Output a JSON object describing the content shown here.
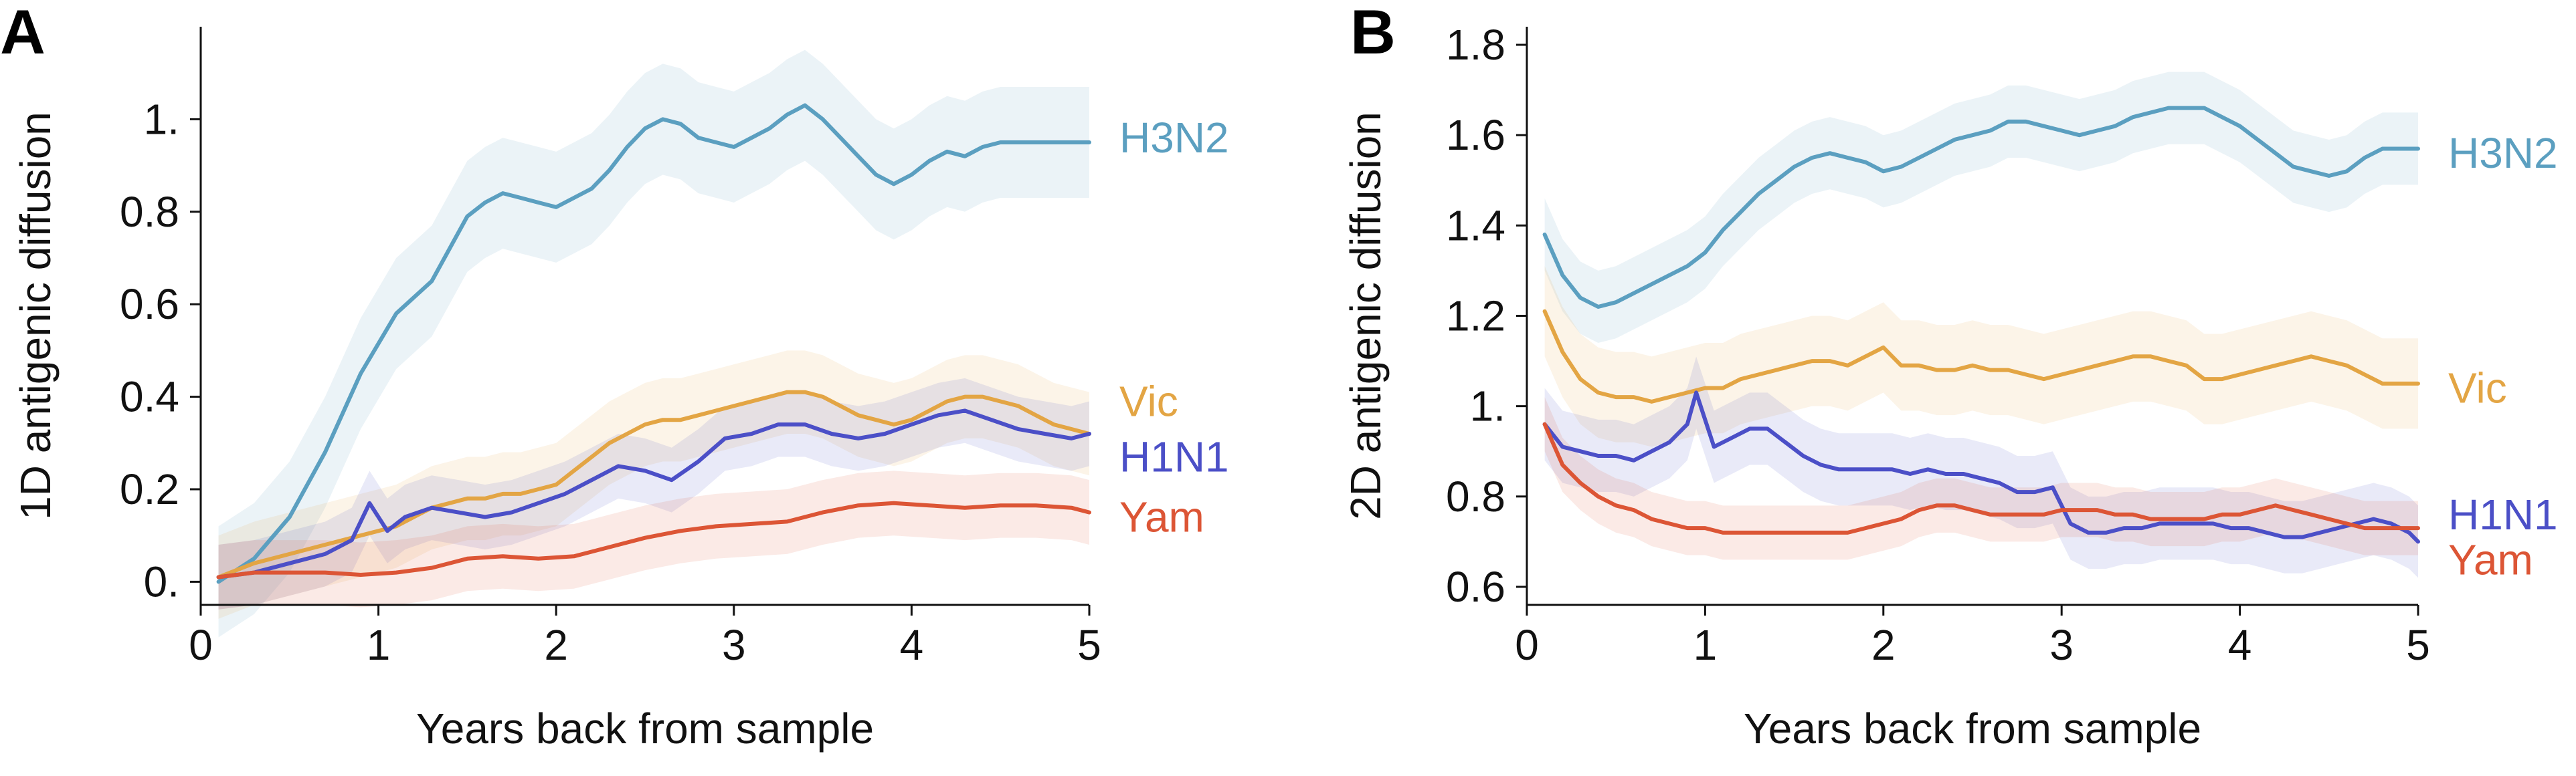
{
  "chart_data": [
    {
      "panel": "A",
      "type": "line",
      "xlabel": "Years back from sample",
      "ylabel": "1D antigenic diffusion",
      "xlim": [
        0,
        5
      ],
      "ylim": [
        -0.05,
        1.2
      ],
      "xticks": [
        0,
        1,
        2,
        3,
        4,
        5
      ],
      "xtick_labels": [
        "0",
        "1",
        "2",
        "3",
        "4",
        "5"
      ],
      "yticks": [
        0,
        0.2,
        0.4,
        0.6,
        0.8,
        1
      ],
      "ytick_labels": [
        "0.",
        "0.2",
        "0.4",
        "0.6",
        "0.8",
        "1."
      ],
      "grid": false,
      "legend": "inline labels at right end of lines",
      "series": [
        {
          "name": "H3N2",
          "color": "#5b9fc0",
          "band": 0.12,
          "x": [
            0.1,
            0.3,
            0.5,
            0.7,
            0.9,
            1.1,
            1.3,
            1.5,
            1.6,
            1.7,
            1.8,
            1.9,
            2.0,
            2.1,
            2.2,
            2.3,
            2.4,
            2.5,
            2.6,
            2.7,
            2.8,
            2.9,
            3.0,
            3.1,
            3.2,
            3.3,
            3.4,
            3.5,
            3.6,
            3.7,
            3.8,
            3.9,
            4.0,
            4.1,
            4.2,
            4.3,
            4.4,
            4.5,
            4.6,
            4.7,
            4.8,
            4.9,
            5.0
          ],
          "y": [
            0.0,
            0.05,
            0.14,
            0.28,
            0.45,
            0.58,
            0.65,
            0.79,
            0.82,
            0.84,
            0.83,
            0.82,
            0.81,
            0.83,
            0.85,
            0.89,
            0.94,
            0.98,
            1.0,
            0.99,
            0.96,
            0.95,
            0.94,
            0.96,
            0.98,
            1.01,
            1.03,
            1.0,
            0.96,
            0.92,
            0.88,
            0.86,
            0.88,
            0.91,
            0.93,
            0.92,
            0.94,
            0.95,
            0.95,
            0.95,
            0.95,
            0.95,
            0.95
          ]
        },
        {
          "name": "Vic",
          "color": "#e3a544",
          "band": 0.09,
          "x": [
            0.1,
            0.3,
            0.5,
            0.7,
            0.9,
            1.0,
            1.1,
            1.2,
            1.3,
            1.4,
            1.5,
            1.6,
            1.7,
            1.8,
            1.9,
            2.0,
            2.1,
            2.2,
            2.3,
            2.4,
            2.5,
            2.6,
            2.7,
            2.8,
            2.9,
            3.0,
            3.1,
            3.2,
            3.3,
            3.4,
            3.5,
            3.6,
            3.7,
            3.8,
            3.9,
            4.0,
            4.1,
            4.2,
            4.3,
            4.4,
            4.5,
            4.6,
            4.7,
            4.8,
            4.9,
            5.0
          ],
          "y": [
            0.01,
            0.04,
            0.06,
            0.08,
            0.1,
            0.11,
            0.12,
            0.14,
            0.16,
            0.17,
            0.18,
            0.18,
            0.19,
            0.19,
            0.2,
            0.21,
            0.24,
            0.27,
            0.3,
            0.32,
            0.34,
            0.35,
            0.35,
            0.36,
            0.37,
            0.38,
            0.39,
            0.4,
            0.41,
            0.41,
            0.4,
            0.38,
            0.36,
            0.35,
            0.34,
            0.35,
            0.37,
            0.39,
            0.4,
            0.4,
            0.39,
            0.38,
            0.36,
            0.34,
            0.33,
            0.32
          ]
        },
        {
          "name": "H1N1",
          "color": "#4b4fc7",
          "band": 0.07,
          "x": [
            0.1,
            0.3,
            0.5,
            0.7,
            0.85,
            0.95,
            1.05,
            1.15,
            1.3,
            1.45,
            1.6,
            1.75,
            1.9,
            2.05,
            2.2,
            2.35,
            2.5,
            2.65,
            2.8,
            2.95,
            3.1,
            3.25,
            3.4,
            3.55,
            3.7,
            3.85,
            4.0,
            4.15,
            4.3,
            4.45,
            4.6,
            4.75,
            4.9,
            5.0
          ],
          "y": [
            0.01,
            0.02,
            0.04,
            0.06,
            0.09,
            0.17,
            0.11,
            0.14,
            0.16,
            0.15,
            0.14,
            0.15,
            0.17,
            0.19,
            0.22,
            0.25,
            0.24,
            0.22,
            0.26,
            0.31,
            0.32,
            0.34,
            0.34,
            0.32,
            0.31,
            0.32,
            0.34,
            0.36,
            0.37,
            0.35,
            0.33,
            0.32,
            0.31,
            0.32
          ]
        },
        {
          "name": "Yam",
          "color": "#dc5535",
          "band": 0.07,
          "x": [
            0.1,
            0.3,
            0.5,
            0.7,
            0.9,
            1.1,
            1.3,
            1.5,
            1.7,
            1.9,
            2.1,
            2.3,
            2.5,
            2.7,
            2.9,
            3.1,
            3.3,
            3.5,
            3.7,
            3.9,
            4.1,
            4.3,
            4.5,
            4.7,
            4.9,
            5.0
          ],
          "y": [
            0.01,
            0.02,
            0.02,
            0.02,
            0.015,
            0.02,
            0.03,
            0.05,
            0.055,
            0.05,
            0.055,
            0.075,
            0.095,
            0.11,
            0.12,
            0.125,
            0.13,
            0.15,
            0.165,
            0.17,
            0.165,
            0.16,
            0.165,
            0.165,
            0.16,
            0.15
          ]
        }
      ]
    },
    {
      "panel": "B",
      "type": "line",
      "xlabel": "Years back from sample",
      "ylabel": "2D antigenic diffusion",
      "xlim": [
        0,
        5
      ],
      "ylim": [
        0.56,
        1.84
      ],
      "xticks": [
        0,
        1,
        2,
        3,
        4,
        5
      ],
      "xtick_labels": [
        "0",
        "1",
        "2",
        "3",
        "4",
        "5"
      ],
      "yticks": [
        0.6,
        0.8,
        1.0,
        1.2,
        1.4,
        1.6,
        1.8
      ],
      "ytick_labels": [
        "0.6",
        "0.8",
        "1.",
        "1.2",
        "1.4",
        "1.6",
        "1.8"
      ],
      "grid": false,
      "legend": "inline labels at right end of lines",
      "series": [
        {
          "name": "H3N2",
          "color": "#5b9fc0",
          "band": 0.08,
          "x": [
            0.1,
            0.2,
            0.3,
            0.4,
            0.5,
            0.6,
            0.7,
            0.8,
            0.9,
            1.0,
            1.1,
            1.2,
            1.3,
            1.4,
            1.5,
            1.6,
            1.7,
            1.8,
            1.9,
            2.0,
            2.1,
            2.2,
            2.3,
            2.4,
            2.5,
            2.6,
            2.7,
            2.8,
            2.9,
            3.0,
            3.1,
            3.2,
            3.3,
            3.4,
            3.5,
            3.6,
            3.7,
            3.8,
            3.9,
            4.0,
            4.1,
            4.2,
            4.3,
            4.4,
            4.5,
            4.6,
            4.7,
            4.8,
            4.9,
            5.0
          ],
          "y": [
            1.38,
            1.29,
            1.24,
            1.22,
            1.23,
            1.25,
            1.27,
            1.29,
            1.31,
            1.34,
            1.39,
            1.43,
            1.47,
            1.5,
            1.53,
            1.55,
            1.56,
            1.55,
            1.54,
            1.52,
            1.53,
            1.55,
            1.57,
            1.59,
            1.6,
            1.61,
            1.63,
            1.63,
            1.62,
            1.61,
            1.6,
            1.61,
            1.62,
            1.64,
            1.65,
            1.66,
            1.66,
            1.66,
            1.64,
            1.62,
            1.59,
            1.56,
            1.53,
            1.52,
            1.51,
            1.52,
            1.55,
            1.57,
            1.57,
            1.57
          ]
        },
        {
          "name": "Vic",
          "color": "#e3a544",
          "band": 0.1,
          "x": [
            0.1,
            0.2,
            0.3,
            0.4,
            0.5,
            0.6,
            0.7,
            0.8,
            0.9,
            1.0,
            1.1,
            1.2,
            1.3,
            1.4,
            1.5,
            1.6,
            1.7,
            1.8,
            1.9,
            2.0,
            2.1,
            2.2,
            2.3,
            2.4,
            2.5,
            2.6,
            2.7,
            2.8,
            2.9,
            3.0,
            3.1,
            3.2,
            3.3,
            3.4,
            3.5,
            3.6,
            3.7,
            3.8,
            3.9,
            4.0,
            4.1,
            4.2,
            4.3,
            4.4,
            4.5,
            4.6,
            4.7,
            4.8,
            4.9,
            5.0
          ],
          "y": [
            1.21,
            1.12,
            1.06,
            1.03,
            1.02,
            1.02,
            1.01,
            1.02,
            1.03,
            1.04,
            1.04,
            1.06,
            1.07,
            1.08,
            1.09,
            1.1,
            1.1,
            1.09,
            1.11,
            1.13,
            1.09,
            1.09,
            1.08,
            1.08,
            1.09,
            1.08,
            1.08,
            1.07,
            1.06,
            1.07,
            1.08,
            1.09,
            1.1,
            1.11,
            1.11,
            1.1,
            1.09,
            1.06,
            1.06,
            1.07,
            1.08,
            1.09,
            1.1,
            1.11,
            1.1,
            1.09,
            1.07,
            1.05,
            1.05,
            1.05
          ]
        },
        {
          "name": "H1N1",
          "color": "#4b4fc7",
          "band": 0.08,
          "x": [
            0.1,
            0.2,
            0.3,
            0.4,
            0.5,
            0.6,
            0.7,
            0.8,
            0.9,
            0.95,
            1.05,
            1.15,
            1.25,
            1.35,
            1.45,
            1.55,
            1.65,
            1.75,
            1.85,
            1.95,
            2.05,
            2.15,
            2.25,
            2.35,
            2.45,
            2.55,
            2.65,
            2.75,
            2.85,
            2.95,
            3.05,
            3.15,
            3.25,
            3.35,
            3.45,
            3.55,
            3.65,
            3.75,
            3.85,
            3.95,
            4.05,
            4.15,
            4.25,
            4.35,
            4.45,
            4.55,
            4.65,
            4.75,
            4.85,
            4.95,
            5.0
          ],
          "y": [
            0.96,
            0.91,
            0.9,
            0.89,
            0.89,
            0.88,
            0.9,
            0.92,
            0.96,
            1.03,
            0.91,
            0.93,
            0.95,
            0.95,
            0.92,
            0.89,
            0.87,
            0.86,
            0.86,
            0.86,
            0.86,
            0.85,
            0.86,
            0.85,
            0.85,
            0.84,
            0.83,
            0.81,
            0.81,
            0.82,
            0.74,
            0.72,
            0.72,
            0.73,
            0.73,
            0.74,
            0.74,
            0.74,
            0.74,
            0.73,
            0.73,
            0.72,
            0.71,
            0.71,
            0.72,
            0.73,
            0.74,
            0.75,
            0.74,
            0.72,
            0.7
          ]
        },
        {
          "name": "Yam",
          "color": "#dc5535",
          "band": 0.06,
          "x": [
            0.1,
            0.2,
            0.3,
            0.4,
            0.5,
            0.6,
            0.7,
            0.8,
            0.9,
            1.0,
            1.1,
            1.2,
            1.3,
            1.4,
            1.5,
            1.6,
            1.7,
            1.8,
            1.9,
            2.0,
            2.1,
            2.2,
            2.3,
            2.4,
            2.5,
            2.6,
            2.7,
            2.8,
            2.9,
            3.0,
            3.1,
            3.2,
            3.3,
            3.4,
            3.5,
            3.6,
            3.7,
            3.8,
            3.9,
            4.0,
            4.1,
            4.2,
            4.3,
            4.4,
            4.5,
            4.6,
            4.7,
            4.8,
            4.9,
            5.0
          ],
          "y": [
            0.96,
            0.87,
            0.83,
            0.8,
            0.78,
            0.77,
            0.75,
            0.74,
            0.73,
            0.73,
            0.72,
            0.72,
            0.72,
            0.72,
            0.72,
            0.72,
            0.72,
            0.72,
            0.73,
            0.74,
            0.75,
            0.77,
            0.78,
            0.78,
            0.77,
            0.76,
            0.76,
            0.76,
            0.76,
            0.77,
            0.77,
            0.77,
            0.76,
            0.76,
            0.75,
            0.75,
            0.75,
            0.75,
            0.76,
            0.76,
            0.77,
            0.78,
            0.77,
            0.76,
            0.75,
            0.74,
            0.73,
            0.73,
            0.73,
            0.73
          ]
        }
      ]
    }
  ]
}
